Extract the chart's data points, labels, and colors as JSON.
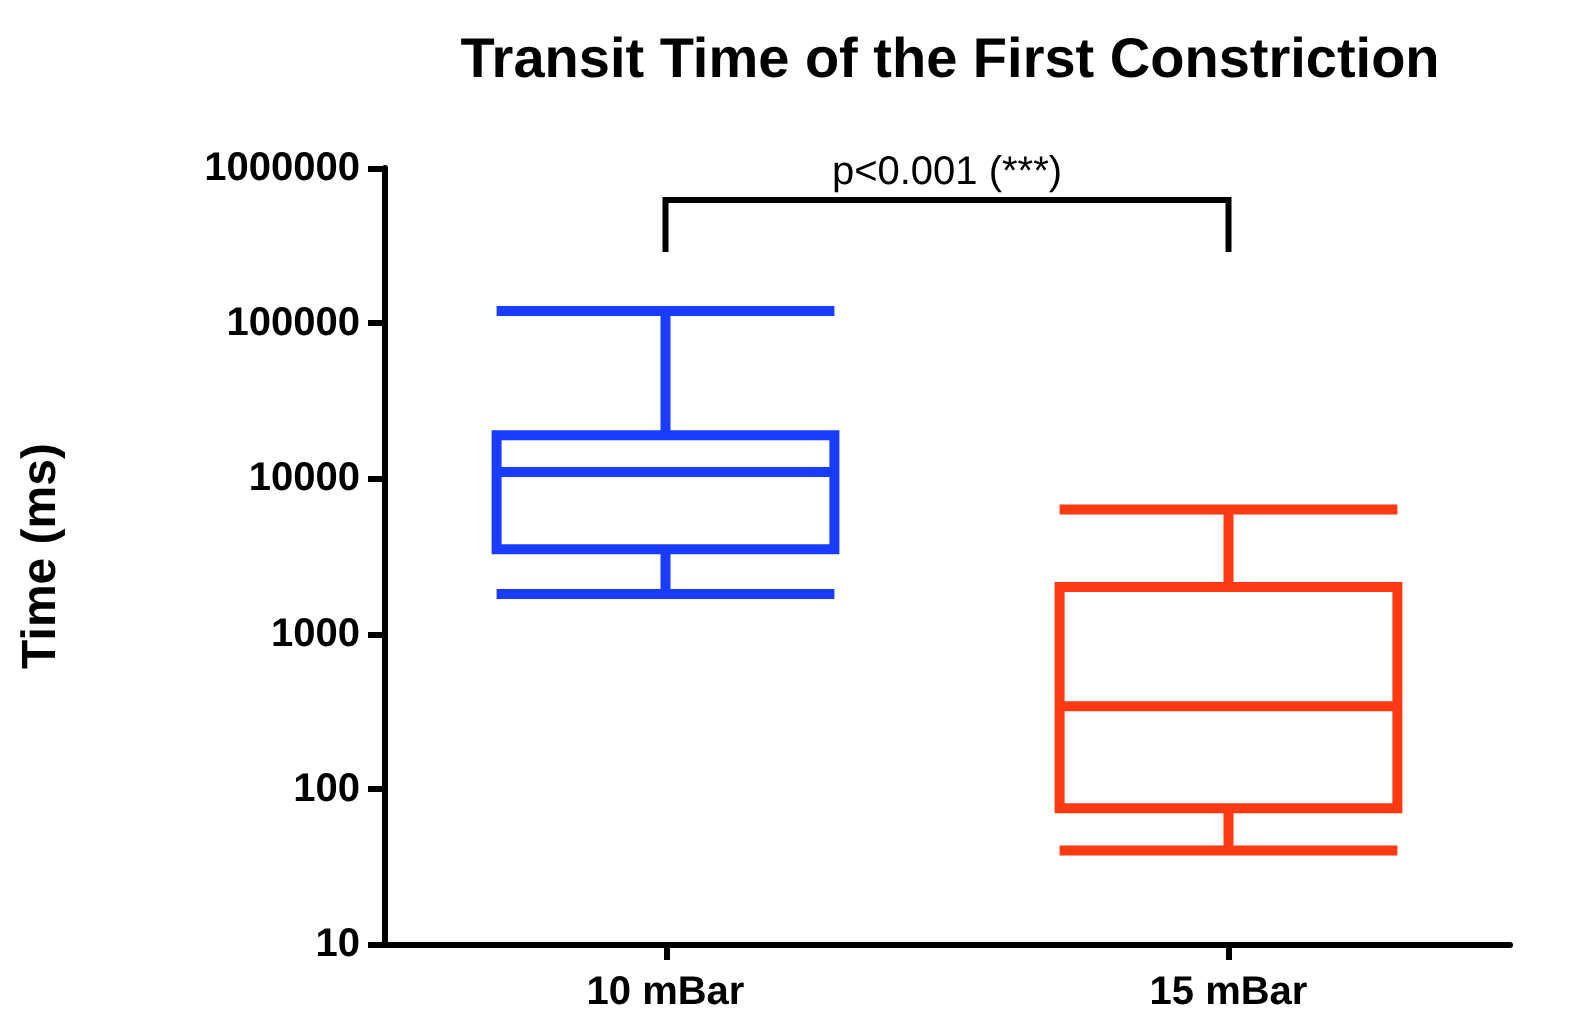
{
  "chart_data": {
    "type": "box",
    "title": "Transit Time of the First Constriction",
    "ylabel": "Time (ms)",
    "categories": [
      "10 mBar",
      "15 mBar"
    ],
    "boxes": [
      {
        "low": 1800,
        "q1": 3500,
        "median": 11000,
        "q3": 19000,
        "high": 120000
      },
      {
        "low": 40,
        "q1": 75,
        "median": 340,
        "q3": 2000,
        "high": 6300
      }
    ],
    "colors": [
      "#1a3cff",
      "#ff3a12"
    ],
    "log": true,
    "ylim": [
      10,
      1000000
    ],
    "yticks": [
      10,
      100,
      1000,
      10000,
      100000,
      1000000
    ],
    "annotations": [
      "p<0.001 (***)"
    ]
  }
}
